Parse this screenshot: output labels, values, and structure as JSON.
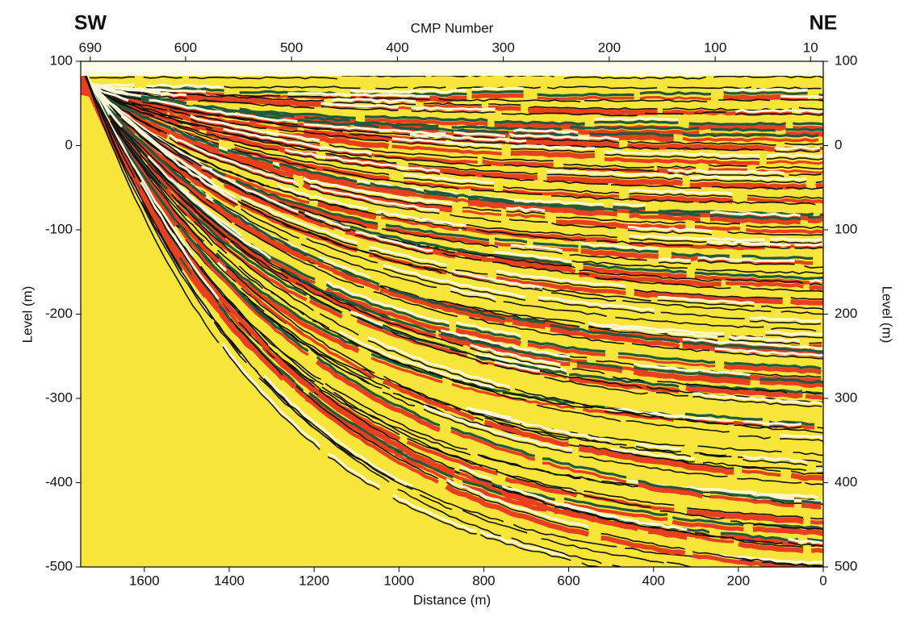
{
  "chart_data": {
    "type": "seismic",
    "left_label": "SW",
    "right_label": "NE",
    "x2_label": "CMP Number",
    "x_label": "Distance (m)",
    "y_label": "Level (m)",
    "y2_label": "Level (m)",
    "xlim": [
      1750,
      0
    ],
    "xticks": [
      1600,
      1400,
      1200,
      1000,
      800,
      600,
      400,
      200,
      0
    ],
    "x2lim": [
      699,
      -2
    ],
    "x2ticks": [
      690,
      600,
      500,
      400,
      300,
      200,
      100,
      10
    ],
    "ylim": [
      -500,
      100
    ],
    "yticks": [
      -500,
      -400,
      -300,
      -200,
      -100,
      0,
      100
    ],
    "y2lim": [
      500,
      -100
    ],
    "y2ticks": [
      {
        "value": -100,
        "label": "100"
      },
      0,
      100,
      200,
      300,
      400,
      500
    ]
  }
}
